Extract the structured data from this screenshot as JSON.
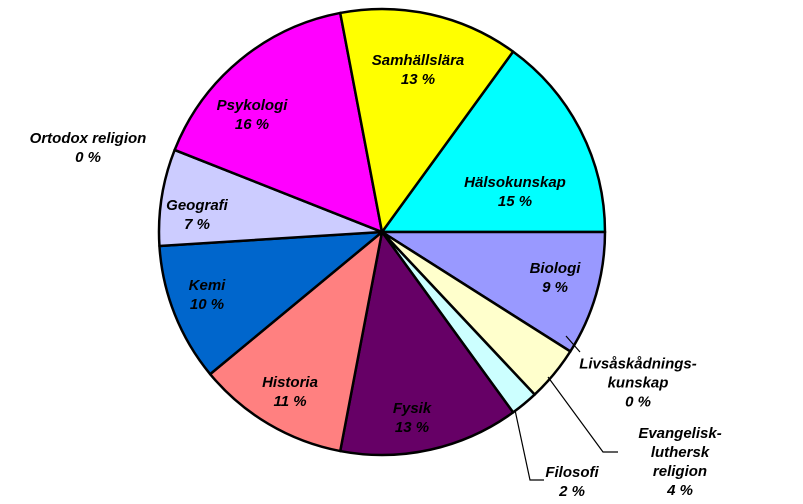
{
  "chart_data": {
    "type": "pie",
    "categories": [
      "Hälsokunskap",
      "Biologi",
      "Livsåskådnings-\nkunskap",
      "Evangelisk-luthersk\nreligion",
      "Filosofi",
      "Fysik",
      "Historia",
      "Kemi",
      "Geografi",
      "Ortodox religion",
      "Psykologi",
      "Samhällslära"
    ],
    "values": [
      15,
      9,
      0,
      4,
      2,
      13,
      11,
      10,
      7,
      0,
      16,
      13
    ],
    "value_labels": [
      "15 %",
      "9 %",
      "0 %",
      "4 %",
      "2 %",
      "13 %",
      "11 %",
      "10 %",
      "7 %",
      "0 %",
      "16 %",
      "13 %"
    ],
    "colors": [
      "#00ffff",
      "#9999ff",
      "#000000",
      "#ffffcc",
      "#ccffff",
      "#660066",
      "#ff8080",
      "#0066cc",
      "#ccccff",
      "#000080",
      "#ff00ff",
      "#ffff00"
    ]
  }
}
